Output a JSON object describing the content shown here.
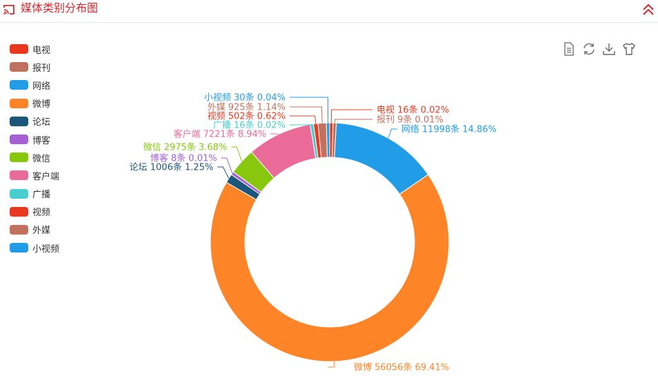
{
  "header": {
    "title": "媒体类别分布图"
  },
  "icons": {
    "title_icon": "cast-icon",
    "collapse": "double-chevron-up-icon",
    "tools": [
      "data-view-icon",
      "restore-icon",
      "save-image-icon",
      "theme-shirt-icon"
    ]
  },
  "chart_data": {
    "type": "pie",
    "style": "donut",
    "title": "媒体类别分布图",
    "legend_position": "left",
    "unit": "条",
    "series": [
      {
        "name": "电视",
        "value": 16,
        "percent": "0.02%",
        "color": "#e8391f"
      },
      {
        "name": "报刊",
        "value": 9,
        "percent": "0.01%",
        "color": "#c2715e"
      },
      {
        "name": "网络",
        "value": 11998,
        "percent": "14.86%",
        "color": "#219de7"
      },
      {
        "name": "微博",
        "value": 56056,
        "percent": "69.41%",
        "color": "#fe8527"
      },
      {
        "name": "论坛",
        "value": 1006,
        "percent": "1.25%",
        "color": "#1b577b"
      },
      {
        "name": "博客",
        "value": 8,
        "percent": "0.01%",
        "color": "#a560d3"
      },
      {
        "name": "微信",
        "value": 2975,
        "percent": "3.68%",
        "color": "#87c80e"
      },
      {
        "name": "客户端",
        "value": 7221,
        "percent": "8.94%",
        "color": "#ea6a98"
      },
      {
        "name": "广播",
        "value": 16,
        "percent": "0.02%",
        "color": "#48cecf"
      },
      {
        "name": "视频",
        "value": 502,
        "percent": "0.62%",
        "color": "#e8391f"
      },
      {
        "name": "外媒",
        "value": 925,
        "percent": "1.14%",
        "color": "#c2715e"
      },
      {
        "name": "小视频",
        "value": 30,
        "percent": "0.04%",
        "color": "#219de7"
      }
    ]
  }
}
